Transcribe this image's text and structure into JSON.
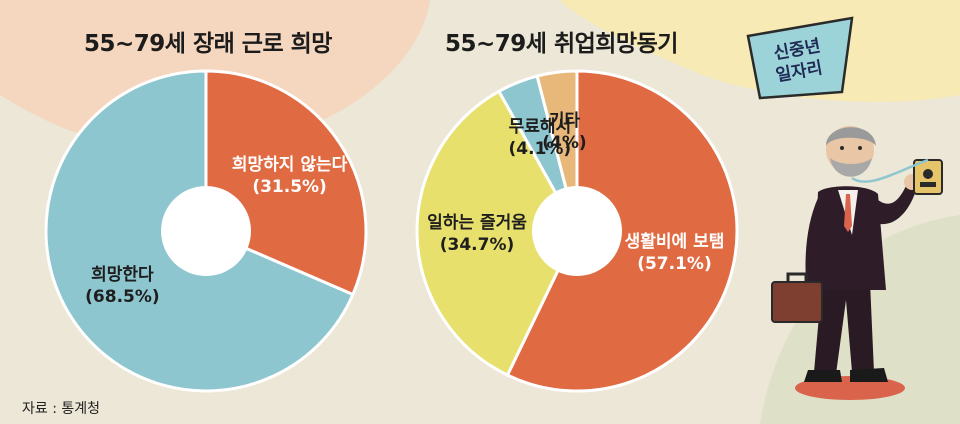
{
  "source": "자료 : 통계청",
  "sign_text": [
    "신중년",
    "일자리"
  ],
  "colors": {
    "orange": "#e06b42",
    "blue": "#8ec6d0",
    "yellow": "#e8e06c",
    "tan": "#e8b77a"
  },
  "chart_data": [
    {
      "type": "pie",
      "title": "55~79세 장래 근로 희망",
      "slices": [
        {
          "label": "희망하지 않는다",
          "value": 31.5,
          "value_label": "(31.5%)",
          "color": "#e06b42"
        },
        {
          "label": "희망한다",
          "value": 68.5,
          "value_label": "(68.5%)",
          "color": "#8ec6d0"
        }
      ]
    },
    {
      "type": "pie",
      "title": "55~79세 취업희망동기",
      "slices": [
        {
          "label": "생활비에 보탬",
          "value": 57.1,
          "value_label": "(57.1%)",
          "color": "#e06b42"
        },
        {
          "label": "일하는 즐거움",
          "value": 34.7,
          "value_label": "(34.7%)",
          "color": "#e8e06c"
        },
        {
          "label": "무료해서",
          "value": 4.1,
          "value_label": "(4.1%)",
          "color": "#8ec6d0"
        },
        {
          "label": "기타",
          "value": 4,
          "value_label": "(4%)",
          "color": "#e8b77a"
        }
      ]
    }
  ]
}
